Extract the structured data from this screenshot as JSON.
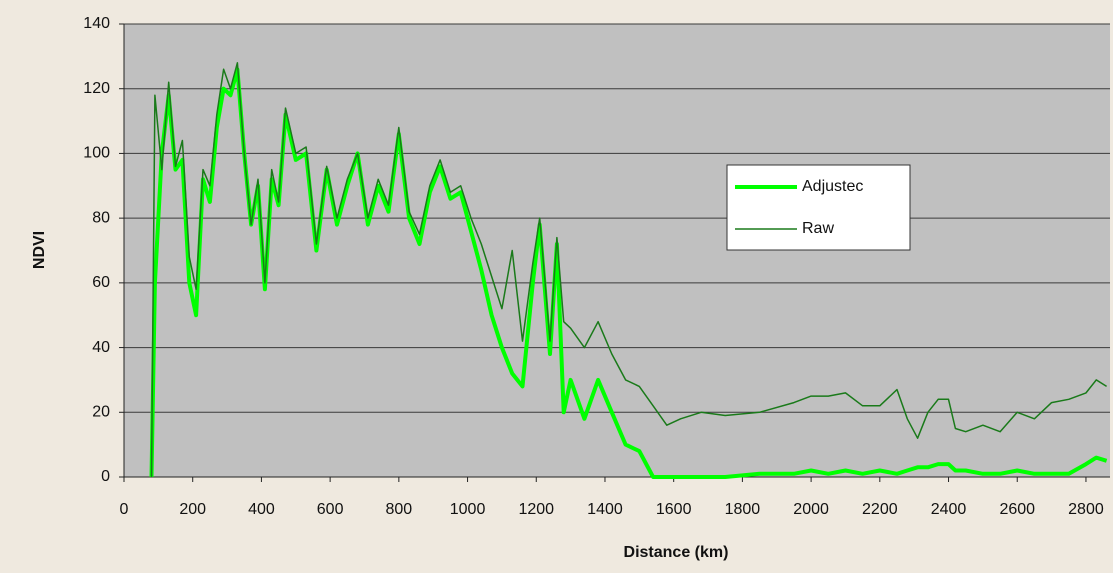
{
  "chart_data": {
    "type": "line",
    "x_label": "Distance (km)",
    "y_label": "NDVI",
    "x": [
      80,
      90,
      110,
      130,
      150,
      170,
      190,
      210,
      230,
      250,
      270,
      290,
      310,
      330,
      350,
      370,
      390,
      410,
      430,
      450,
      470,
      500,
      530,
      560,
      590,
      620,
      650,
      680,
      710,
      740,
      770,
      800,
      830,
      860,
      890,
      920,
      950,
      980,
      1010,
      1040,
      1070,
      1100,
      1130,
      1160,
      1190,
      1210,
      1240,
      1260,
      1280,
      1300,
      1340,
      1380,
      1420,
      1460,
      1500,
      1540,
      1580,
      1620,
      1680,
      1750,
      1850,
      1950,
      2000,
      2050,
      2100,
      2150,
      2200,
      2250,
      2280,
      2310,
      2340,
      2370,
      2400,
      2420,
      2450,
      2500,
      2550,
      2600,
      2650,
      2700,
      2750,
      2800,
      2830,
      2860
    ],
    "series": [
      {
        "name": "Adjustec",
        "color": "#00ff00",
        "values": [
          0,
          60,
          100,
          118,
          95,
          98,
          60,
          50,
          92,
          85,
          108,
          120,
          118,
          126,
          100,
          78,
          90,
          58,
          92,
          84,
          112,
          98,
          100,
          70,
          95,
          78,
          90,
          100,
          78,
          90,
          82,
          106,
          80,
          72,
          88,
          96,
          86,
          88,
          76,
          64,
          50,
          40,
          32,
          28,
          60,
          78,
          38,
          72,
          20,
          30,
          18,
          30,
          20,
          10,
          8,
          0,
          0,
          0,
          0,
          0,
          1,
          1,
          2,
          1,
          2,
          1,
          2,
          1,
          2,
          3,
          3,
          4,
          4,
          2,
          2,
          1,
          1,
          2,
          1,
          1,
          1,
          4,
          6,
          5
        ]
      },
      {
        "name": "Raw",
        "color": "#1a7a1a",
        "values": [
          0,
          118,
          95,
          122,
          96,
          104,
          68,
          58,
          95,
          90,
          112,
          126,
          120,
          128,
          100,
          78,
          92,
          60,
          95,
          85,
          114,
          100,
          102,
          72,
          96,
          80,
          92,
          100,
          80,
          92,
          84,
          108,
          82,
          75,
          90,
          98,
          88,
          90,
          80,
          72,
          62,
          52,
          70,
          42,
          66,
          80,
          42,
          74,
          48,
          46,
          40,
          48,
          38,
          30,
          28,
          22,
          16,
          18,
          20,
          19,
          20,
          23,
          25,
          25,
          26,
          22,
          22,
          27,
          18,
          12,
          20,
          24,
          24,
          15,
          14,
          16,
          14,
          20,
          18,
          23,
          24,
          26,
          30,
          28
        ]
      }
    ],
    "xlim": [
      0,
      2870
    ],
    "ylim": [
      0,
      140
    ],
    "xticks": [
      0,
      200,
      400,
      600,
      800,
      1000,
      1200,
      1400,
      1600,
      1800,
      2000,
      2200,
      2400,
      2600,
      2800
    ],
    "yticks": [
      0,
      20,
      40,
      60,
      80,
      100,
      120,
      140
    ],
    "grid": true,
    "legend": "center-right"
  }
}
